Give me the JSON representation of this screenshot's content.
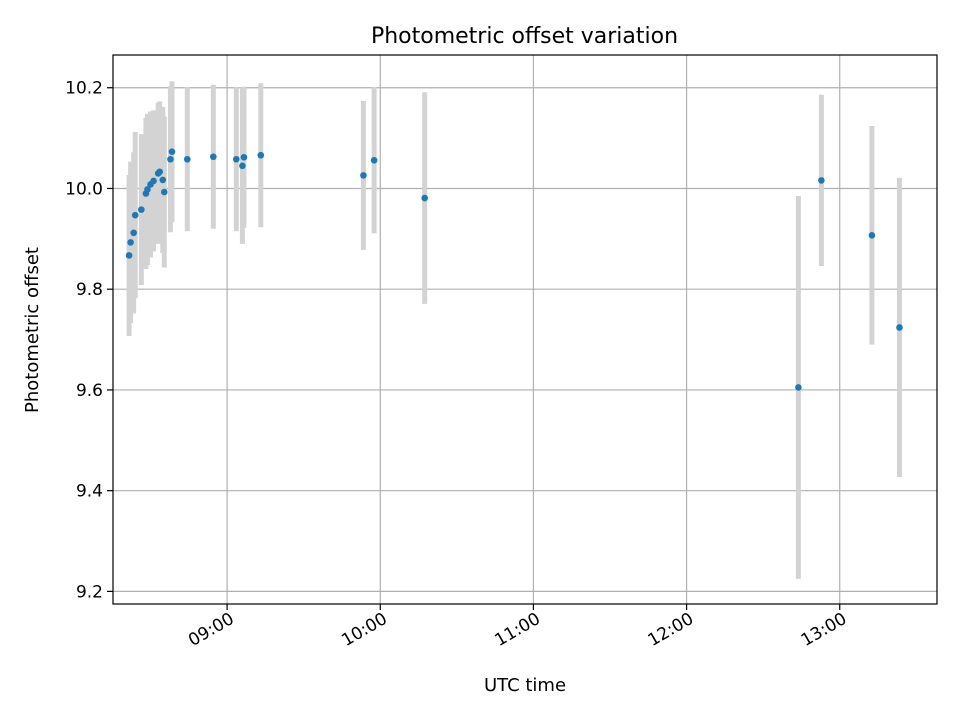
{
  "chart_data": {
    "type": "scatter",
    "title": "Photometric offset variation",
    "xlabel": "UTC time",
    "ylabel": "Photometric offset",
    "xlim": [
      8.255,
      13.635
    ],
    "ylim": [
      9.175,
      10.265
    ],
    "x_ticks": [
      {
        "value": 9.0,
        "label": "09:00"
      },
      {
        "value": 10.0,
        "label": "10:00"
      },
      {
        "value": 11.0,
        "label": "11:00"
      },
      {
        "value": 12.0,
        "label": "12:00"
      },
      {
        "value": 13.0,
        "label": "13:00"
      }
    ],
    "y_ticks": [
      {
        "value": 9.2,
        "label": "9.2"
      },
      {
        "value": 9.4,
        "label": "9.4"
      },
      {
        "value": 9.6,
        "label": "9.6"
      },
      {
        "value": 9.8,
        "label": "9.8"
      },
      {
        "value": 10.0,
        "label": "10.0"
      },
      {
        "value": 10.2,
        "label": "10.2"
      }
    ],
    "grid": true,
    "marker_color": "#1f77b4",
    "errorbar_color": "#d3d3d3",
    "points": [
      {
        "x": 8.36,
        "y": 9.867,
        "yerr": 0.16
      },
      {
        "x": 8.37,
        "y": 9.893,
        "yerr": 0.16
      },
      {
        "x": 8.39,
        "y": 9.912,
        "yerr": 0.16
      },
      {
        "x": 8.4,
        "y": 9.947,
        "yerr": 0.165
      },
      {
        "x": 8.44,
        "y": 9.958,
        "yerr": 0.15
      },
      {
        "x": 8.47,
        "y": 9.99,
        "yerr": 0.15
      },
      {
        "x": 8.48,
        "y": 9.998,
        "yerr": 0.15
      },
      {
        "x": 8.5,
        "y": 10.008,
        "yerr": 0.145
      },
      {
        "x": 8.52,
        "y": 10.015,
        "yerr": 0.14
      },
      {
        "x": 8.55,
        "y": 10.03,
        "yerr": 0.14
      },
      {
        "x": 8.56,
        "y": 10.033,
        "yerr": 0.14
      },
      {
        "x": 8.58,
        "y": 10.017,
        "yerr": 0.145
      },
      {
        "x": 8.59,
        "y": 9.993,
        "yerr": 0.15
      },
      {
        "x": 8.63,
        "y": 10.058,
        "yerr": 0.145
      },
      {
        "x": 8.64,
        "y": 10.073,
        "yerr": 0.14
      },
      {
        "x": 8.74,
        "y": 10.058,
        "yerr": 0.143
      },
      {
        "x": 8.91,
        "y": 10.063,
        "yerr": 0.143
      },
      {
        "x": 9.06,
        "y": 10.058,
        "yerr": 0.143
      },
      {
        "x": 9.1,
        "y": 10.045,
        "yerr": 0.155
      },
      {
        "x": 9.11,
        "y": 10.062,
        "yerr": 0.14
      },
      {
        "x": 9.22,
        "y": 10.066,
        "yerr": 0.143
      },
      {
        "x": 9.89,
        "y": 10.026,
        "yerr": 0.148
      },
      {
        "x": 9.96,
        "y": 10.056,
        "yerr": 0.145
      },
      {
        "x": 10.29,
        "y": 9.981,
        "yerr": 0.21
      },
      {
        "x": 12.73,
        "y": 9.605,
        "yerr": 0.38
      },
      {
        "x": 12.88,
        "y": 10.016,
        "yerr": 0.17
      },
      {
        "x": 13.21,
        "y": 9.907,
        "yerr": 0.217
      },
      {
        "x": 13.39,
        "y": 9.724,
        "yerr": 0.297
      }
    ]
  }
}
